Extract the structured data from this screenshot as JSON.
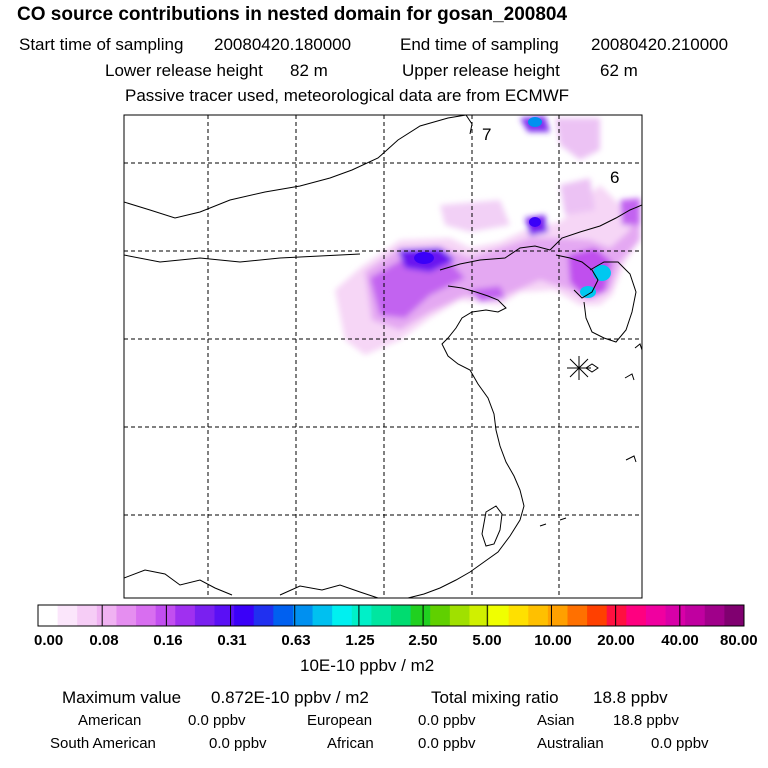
{
  "header": {
    "title": "CO  source contributions in nested domain for gosan_200804",
    "start_label": "Start time of sampling",
    "start_value": "20080420.180000",
    "end_label": "End time of sampling",
    "end_value": "20080420.210000",
    "lower_label": "Lower release height",
    "lower_value": "82 m",
    "upper_label": "Upper release height",
    "upper_value": "62 m",
    "note": "Passive tracer used, meteorological data are from ECMWF"
  },
  "map": {
    "contour_labels": [
      "7",
      "6"
    ],
    "colors": {
      "outline": "#000000",
      "grid": "#000000"
    }
  },
  "colorbar": {
    "unit": "10E-10 ppbv / m2",
    "tick_labels": [
      "0.00",
      "0.08",
      "0.16",
      "0.31",
      "0.63",
      "1.25",
      "2.50",
      "5.00",
      "10.00",
      "20.00",
      "40.00",
      "80.00"
    ],
    "colors": [
      "#ffffff",
      "#fbe6fb",
      "#f6cdf6",
      "#f0b2f2",
      "#e58ef0",
      "#d86ef0",
      "#c24ef0",
      "#a030f0",
      "#7a20f0",
      "#5a10f5",
      "#3a00f8",
      "#2030f0",
      "#0060f0",
      "#0090f0",
      "#00c0f0",
      "#00f0f0",
      "#00f0c8",
      "#00e6a0",
      "#00dc70",
      "#20d020",
      "#60d000",
      "#a0e000",
      "#d0f000",
      "#f0ff00",
      "#ffe000",
      "#ffc000",
      "#ffa000",
      "#ff7000",
      "#ff4000",
      "#ff1040",
      "#ff0080",
      "#f000a0",
      "#d800a8",
      "#c000a0",
      "#a0008a",
      "#800070"
    ]
  },
  "stats": {
    "max_label": "Maximum value",
    "max_value": "0.872E-10 ppbv / m2",
    "total_label": "Total mixing ratio",
    "total_value": "18.8 ppbv",
    "regions": [
      {
        "name": "American",
        "value": "0.0 ppbv"
      },
      {
        "name": "European",
        "value": "0.0 ppbv"
      },
      {
        "name": "Asian",
        "value": "18.8 ppbv"
      },
      {
        "name": "South American",
        "value": "0.0 ppbv"
      },
      {
        "name": "African",
        "value": "0.0 ppbv"
      },
      {
        "name": "Australian",
        "value": "0.0 ppbv"
      }
    ]
  }
}
